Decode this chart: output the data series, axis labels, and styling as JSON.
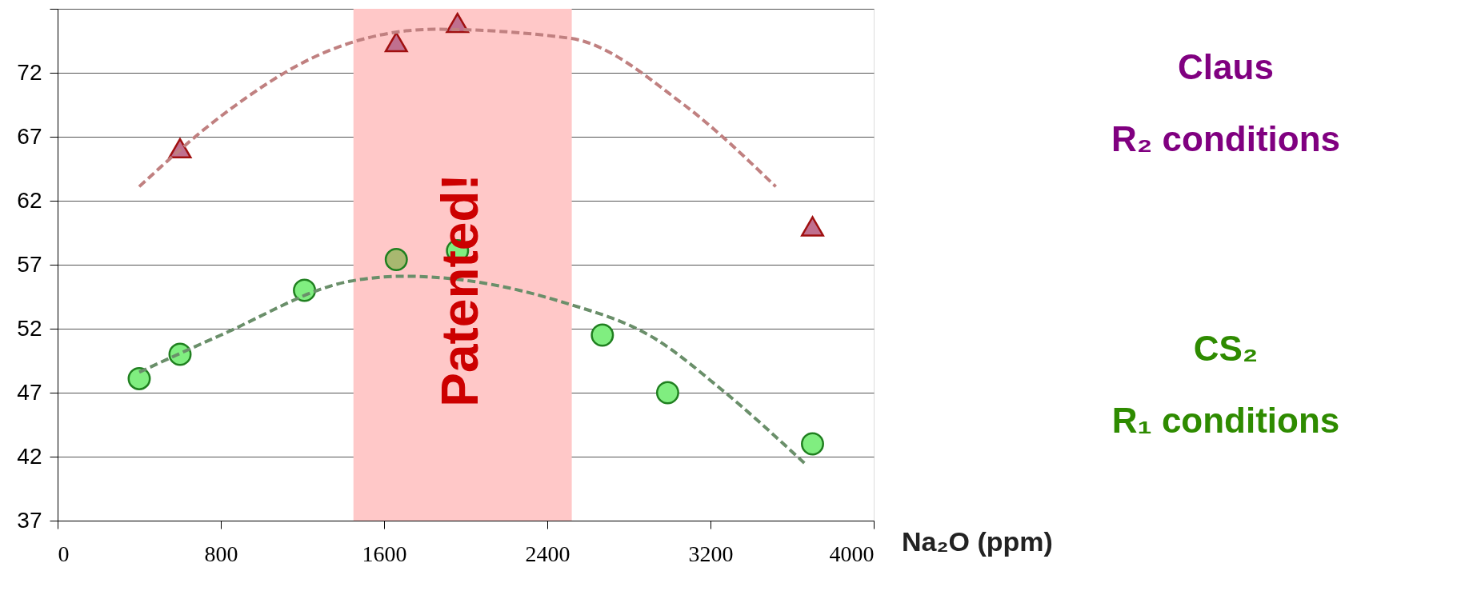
{
  "chart_data": {
    "type": "scatter",
    "xlabel": "Na₂O (ppm)",
    "xlim": [
      0,
      4000
    ],
    "xticks": [
      0,
      800,
      1600,
      2400,
      3200,
      4000
    ],
    "ylim": [
      37,
      77
    ],
    "yticks": [
      37,
      42,
      47,
      52,
      57,
      62,
      67,
      72,
      {
        "value": 77,
        "label": null
      }
    ],
    "grid": "y",
    "series": [
      {
        "marker": "triangle",
        "color": "#c0708f",
        "x": [
          600,
          1660,
          1960,
          3700
        ],
        "values": [
          66.1,
          74.4,
          75.9,
          60
        ]
      },
      {
        "marker": "circle",
        "colors": [
          "#80ee80",
          "#80ee80",
          "#80ee80",
          "#a8b870",
          "#80ee80",
          "#80ee80",
          "#80ee80",
          "#80ee80"
        ],
        "x": [
          400,
          600,
          1210,
          1660,
          1960,
          2670,
          2990,
          3700
        ],
        "values": [
          48.1,
          50.0,
          55.0,
          57.4,
          58.1,
          51.5,
          47.0,
          43.0
        ]
      },
      {
        "type": "line",
        "line_style": "dashed",
        "marker": "none",
        "color": "#c08080",
        "x": [
          400,
          800,
          1310,
          1850,
          2510,
          3070,
          3520
        ],
        "values": [
          63.1,
          68.6,
          73.6,
          75.4,
          74.7,
          69.5,
          63.1
        ]
      },
      {
        "type": "line",
        "line_style": "dashed",
        "marker": "none",
        "color": "#6a8f6a",
        "x": [
          400,
          800,
          1430,
          1700,
          2470,
          2930,
          3250,
          3660
        ],
        "values": [
          48.6,
          51.5,
          55.7,
          56.1,
          54.1,
          51.2,
          47.3,
          41.5
        ]
      }
    ],
    "bands": [
      {
        "axis": "x",
        "from": 1450,
        "to": 2520,
        "label": "Patented!",
        "color": "#ffc8c8"
      }
    ],
    "annotations": [
      "Claus\nR₂ conditions",
      "CS₂\nR₁ conditions"
    ]
  }
}
